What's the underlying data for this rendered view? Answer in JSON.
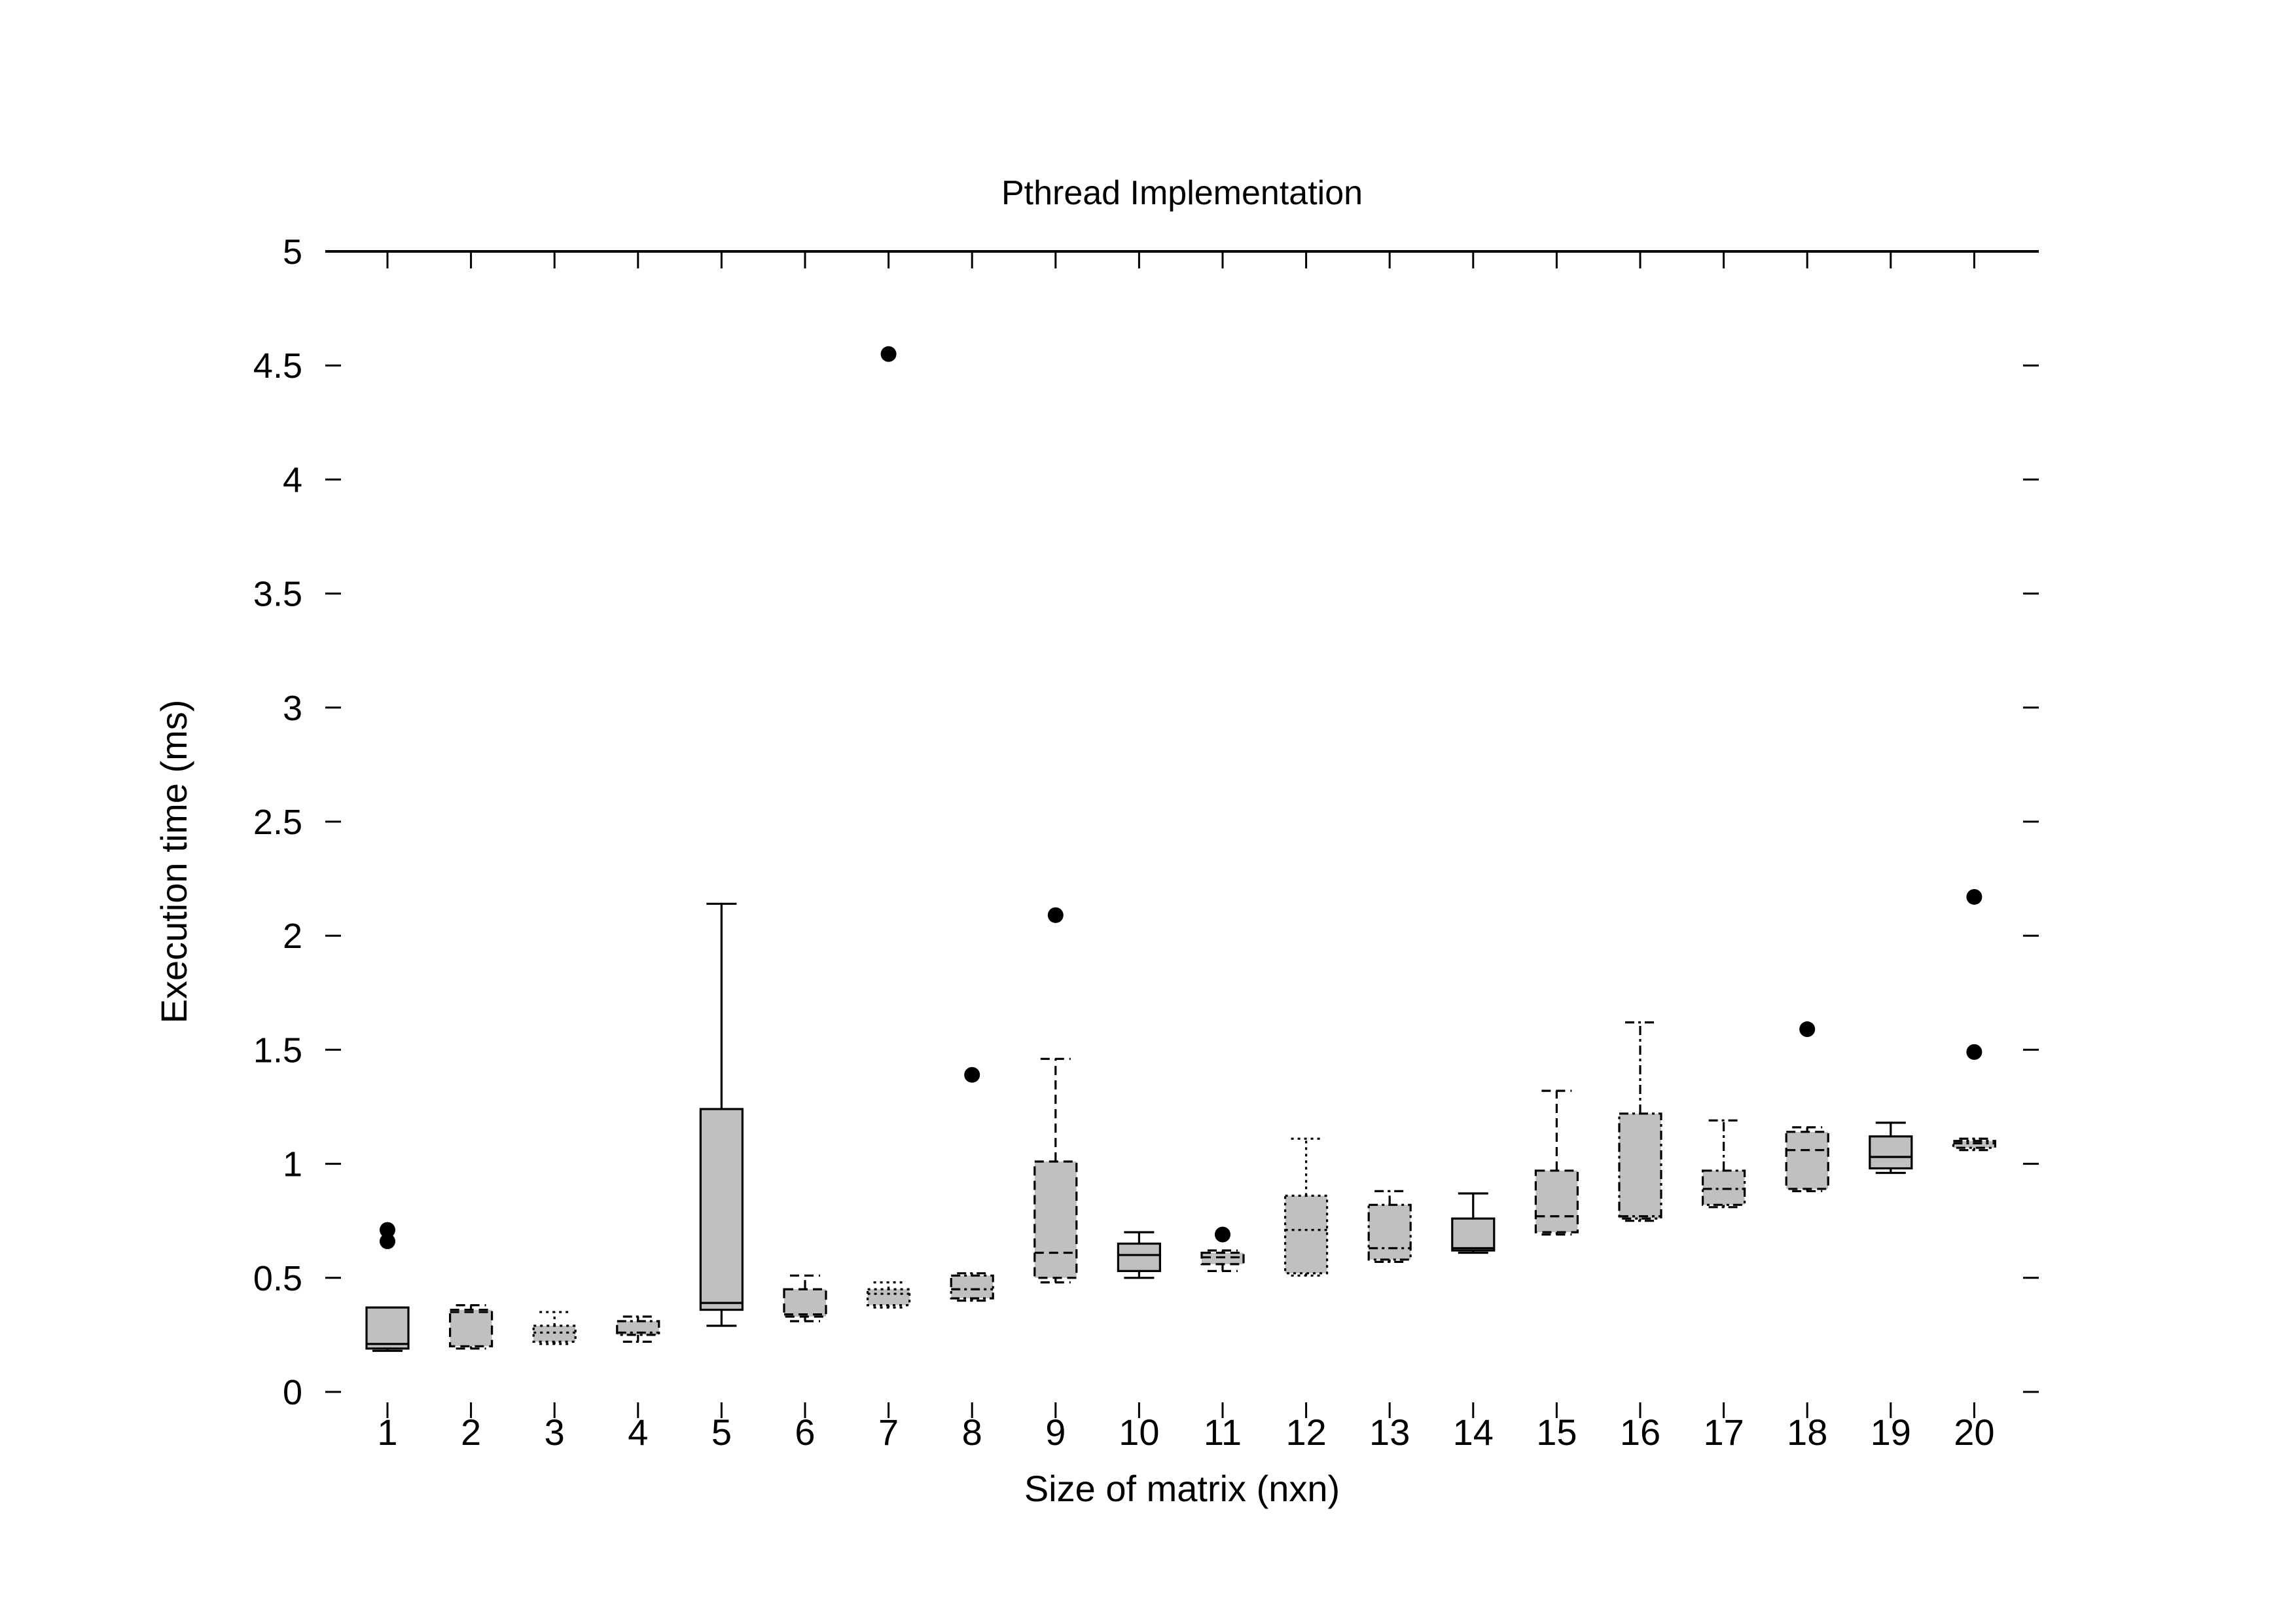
{
  "chart_data": {
    "type": "box",
    "title": "Pthread Implementation",
    "xlabel": "Size of matrix (nxn)",
    "ylabel": "Execution time (ms)",
    "ylim": [
      0,
      5
    ],
    "yticks": [
      "0",
      "0.5",
      "1",
      "1.5",
      "2",
      "2.5",
      "3",
      "3.5",
      "4",
      "4.5",
      "5"
    ],
    "grid": false,
    "legend": "none",
    "box_fill": "#c0c0c0",
    "categories": [
      "1",
      "2",
      "3",
      "4",
      "5",
      "6",
      "7",
      "8",
      "9",
      "10",
      "11",
      "12",
      "13",
      "14",
      "15",
      "16",
      "17",
      "18",
      "19",
      "20"
    ],
    "boxes": [
      {
        "category": "1",
        "whisker_low": 0.18,
        "q1": 0.19,
        "median": 0.21,
        "q3": 0.37,
        "whisker_high": 0.37,
        "outliers": [
          0.71,
          0.66
        ],
        "line_style": "solid"
      },
      {
        "category": "2",
        "whisker_low": 0.19,
        "q1": 0.2,
        "median": 0.35,
        "q3": 0.36,
        "whisker_high": 0.38,
        "outliers": [],
        "line_style": "dashed"
      },
      {
        "category": "3",
        "whisker_low": 0.21,
        "q1": 0.22,
        "median": 0.26,
        "q3": 0.29,
        "whisker_high": 0.35,
        "outliers": [],
        "line_style": "dotted"
      },
      {
        "category": "4",
        "whisker_low": 0.22,
        "q1": 0.25,
        "median": 0.26,
        "q3": 0.31,
        "whisker_high": 0.33,
        "outliers": [],
        "line_style": "dashdot"
      },
      {
        "category": "5",
        "whisker_low": 0.29,
        "q1": 0.36,
        "median": 0.39,
        "q3": 1.24,
        "whisker_high": 2.14,
        "outliers": [],
        "line_style": "solid"
      },
      {
        "category": "6",
        "whisker_low": 0.31,
        "q1": 0.33,
        "median": 0.34,
        "q3": 0.45,
        "whisker_high": 0.51,
        "outliers": [],
        "line_style": "dashed"
      },
      {
        "category": "7",
        "whisker_low": 0.37,
        "q1": 0.38,
        "median": 0.43,
        "q3": 0.45,
        "whisker_high": 0.48,
        "outliers": [
          4.55
        ],
        "line_style": "dotted"
      },
      {
        "category": "8",
        "whisker_low": 0.4,
        "q1": 0.41,
        "median": 0.45,
        "q3": 0.51,
        "whisker_high": 0.52,
        "outliers": [
          1.39
        ],
        "line_style": "dashdot"
      },
      {
        "category": "9",
        "whisker_low": 0.48,
        "q1": 0.5,
        "median": 0.61,
        "q3": 1.01,
        "whisker_high": 1.46,
        "outliers": [
          2.09
        ],
        "line_style": "dashed"
      },
      {
        "category": "10",
        "whisker_low": 0.5,
        "q1": 0.53,
        "median": 0.6,
        "q3": 0.65,
        "whisker_high": 0.7,
        "outliers": [],
        "line_style": "solid"
      },
      {
        "category": "11",
        "whisker_low": 0.53,
        "q1": 0.56,
        "median": 0.59,
        "q3": 0.61,
        "whisker_high": 0.62,
        "outliers": [
          0.69
        ],
        "line_style": "dashed"
      },
      {
        "category": "12",
        "whisker_low": 0.51,
        "q1": 0.52,
        "median": 0.71,
        "q3": 0.86,
        "whisker_high": 1.11,
        "outliers": [],
        "line_style": "dotted"
      },
      {
        "category": "13",
        "whisker_low": 0.57,
        "q1": 0.58,
        "median": 0.63,
        "q3": 0.82,
        "whisker_high": 0.88,
        "outliers": [],
        "line_style": "dashdot"
      },
      {
        "category": "14",
        "whisker_low": 0.61,
        "q1": 0.62,
        "median": 0.63,
        "q3": 0.76,
        "whisker_high": 0.87,
        "outliers": [],
        "line_style": "solid"
      },
      {
        "category": "15",
        "whisker_low": 0.69,
        "q1": 0.7,
        "median": 0.77,
        "q3": 0.97,
        "whisker_high": 1.32,
        "outliers": [],
        "line_style": "dashed"
      },
      {
        "category": "16",
        "whisker_low": 0.75,
        "q1": 0.76,
        "median": 0.77,
        "q3": 1.22,
        "whisker_high": 1.62,
        "outliers": [],
        "line_style": "dashdot"
      },
      {
        "category": "17",
        "whisker_low": 0.81,
        "q1": 0.82,
        "median": 0.89,
        "q3": 0.97,
        "whisker_high": 1.19,
        "outliers": [],
        "line_style": "dashdot"
      },
      {
        "category": "18",
        "whisker_low": 0.88,
        "q1": 0.89,
        "median": 1.06,
        "q3": 1.14,
        "whisker_high": 1.16,
        "outliers": [
          1.59
        ],
        "line_style": "dashed"
      },
      {
        "category": "19",
        "whisker_low": 0.96,
        "q1": 0.98,
        "median": 1.03,
        "q3": 1.12,
        "whisker_high": 1.18,
        "outliers": [],
        "line_style": "solid"
      },
      {
        "category": "20",
        "whisker_low": 1.06,
        "q1": 1.07,
        "median": 1.09,
        "q3": 1.1,
        "whisker_high": 1.11,
        "outliers": [
          2.17,
          1.49
        ],
        "line_style": "dashdot"
      }
    ]
  }
}
